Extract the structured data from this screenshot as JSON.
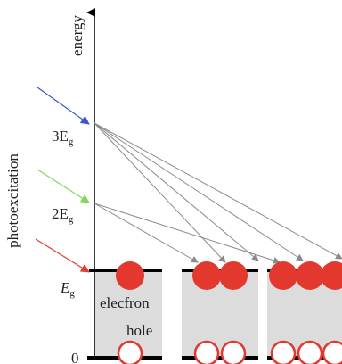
{
  "axis": {
    "y_label": "energy",
    "side_label": "photoexcitation"
  },
  "levels": {
    "eg3_main": "3E",
    "eg3_sub": "g",
    "eg2_main": "2E",
    "eg2_sub": "g",
    "eg1_main": "E",
    "eg1_sub": "g",
    "zero": "0"
  },
  "labels": {
    "electron": "elecfron",
    "hole": "hole"
  },
  "colors": {
    "band_fill": "#dcdcdc",
    "electron": "#e2382e",
    "hole_stroke": "#e2382e",
    "arrow_gray": "#8a8a8a",
    "photon_blue": "#3a55d6",
    "photon_green": "#7ed957",
    "photon_red": "#e23b35"
  }
}
